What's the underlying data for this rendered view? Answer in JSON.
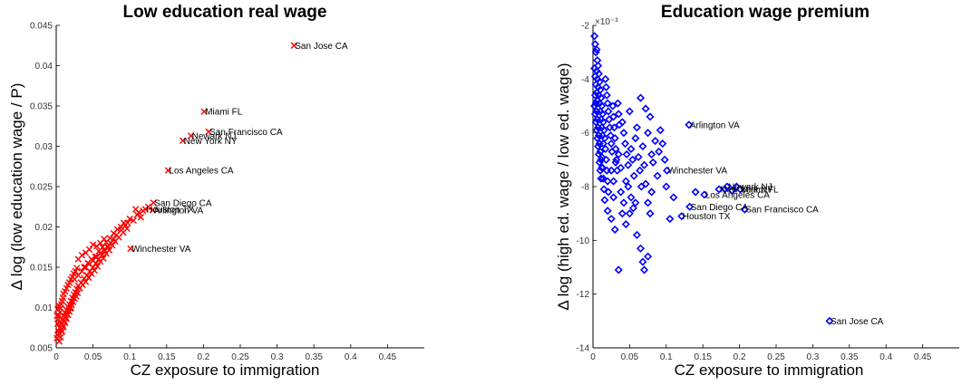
{
  "chart_data": [
    {
      "type": "scatter",
      "title": "Low education real wage",
      "xlabel": "CZ exposure to immigration",
      "ylabel": "Δ log (low education wage / P)",
      "xlim": [
        0,
        0.5
      ],
      "ylim": [
        0.005,
        0.045
      ],
      "xticks": [
        "0",
        "0.05",
        "0.1",
        "0.15",
        "0.2",
        "0.25",
        "0.3",
        "0.35",
        "0.4",
        "0.45"
      ],
      "yticks": [
        "0.005",
        "0.01",
        "0.015",
        "0.02",
        "0.025",
        "0.03",
        "0.035",
        "0.04",
        "0.045"
      ],
      "grid": false,
      "marker": "x",
      "color": "#ff0000",
      "labeled_points": [
        {
          "name": "San Jose CA",
          "x": 0.323,
          "y": 0.0425
        },
        {
          "name": "Miami FL",
          "x": 0.201,
          "y": 0.0343
        },
        {
          "name": "San Francisco CA",
          "x": 0.207,
          "y": 0.0318
        },
        {
          "name": "Newark NJ",
          "x": 0.183,
          "y": 0.0313
        },
        {
          "name": "New York NY",
          "x": 0.172,
          "y": 0.0307
        },
        {
          "name": "Los Angeles CA",
          "x": 0.152,
          "y": 0.027
        },
        {
          "name": "San Diego CA",
          "x": 0.132,
          "y": 0.023
        },
        {
          "name": "Houston TX",
          "x": 0.121,
          "y": 0.0222
        },
        {
          "name": "Arlington VA",
          "x": 0.131,
          "y": 0.0221
        },
        {
          "name": "Winchester VA",
          "x": 0.101,
          "y": 0.0173
        }
      ],
      "points": [
        [
          0.001,
          0.0062
        ],
        [
          0.002,
          0.0066
        ],
        [
          0.003,
          0.0071
        ],
        [
          0.004,
          0.0068
        ],
        [
          0.005,
          0.0075
        ],
        [
          0.006,
          0.008
        ],
        [
          0.007,
          0.0072
        ],
        [
          0.008,
          0.0085
        ],
        [
          0.009,
          0.0078
        ],
        [
          0.01,
          0.009
        ],
        [
          0.011,
          0.0083
        ],
        [
          0.012,
          0.0094
        ],
        [
          0.013,
          0.0088
        ],
        [
          0.014,
          0.0097
        ],
        [
          0.015,
          0.0092
        ],
        [
          0.016,
          0.0101
        ],
        [
          0.017,
          0.0096
        ],
        [
          0.018,
          0.0104
        ],
        [
          0.019,
          0.0099
        ],
        [
          0.02,
          0.0108
        ],
        [
          0.021,
          0.0103
        ],
        [
          0.022,
          0.0112
        ],
        [
          0.023,
          0.0107
        ],
        [
          0.024,
          0.0116
        ],
        [
          0.025,
          0.0111
        ],
        [
          0.026,
          0.0119
        ],
        [
          0.027,
          0.0114
        ],
        [
          0.028,
          0.0123
        ],
        [
          0.029,
          0.0118
        ],
        [
          0.03,
          0.0127
        ],
        [
          0.032,
          0.0124
        ],
        [
          0.034,
          0.0131
        ],
        [
          0.036,
          0.0128
        ],
        [
          0.038,
          0.0136
        ],
        [
          0.04,
          0.0132
        ],
        [
          0.042,
          0.014
        ],
        [
          0.044,
          0.0137
        ],
        [
          0.046,
          0.0145
        ],
        [
          0.048,
          0.0142
        ],
        [
          0.05,
          0.015
        ],
        [
          0.052,
          0.0146
        ],
        [
          0.054,
          0.0155
        ],
        [
          0.056,
          0.0151
        ],
        [
          0.058,
          0.016
        ],
        [
          0.06,
          0.0157
        ],
        [
          0.062,
          0.0165
        ],
        [
          0.064,
          0.0161
        ],
        [
          0.066,
          0.017
        ],
        [
          0.068,
          0.0167
        ],
        [
          0.07,
          0.0175
        ],
        [
          0.072,
          0.0171
        ],
        [
          0.074,
          0.018
        ],
        [
          0.076,
          0.0177
        ],
        [
          0.078,
          0.0185
        ],
        [
          0.08,
          0.0182
        ],
        [
          0.082,
          0.019
        ],
        [
          0.085,
          0.0187
        ],
        [
          0.088,
          0.0196
        ],
        [
          0.091,
          0.0193
        ],
        [
          0.094,
          0.0202
        ],
        [
          0.097,
          0.0205
        ],
        [
          0.1,
          0.021
        ],
        [
          0.03,
          0.016
        ],
        [
          0.035,
          0.0165
        ],
        [
          0.04,
          0.0168
        ],
        [
          0.045,
          0.0172
        ],
        [
          0.05,
          0.0178
        ],
        [
          0.055,
          0.0176
        ],
        [
          0.06,
          0.018
        ],
        [
          0.065,
          0.0185
        ],
        [
          0.038,
          0.015
        ],
        [
          0.043,
          0.0155
        ],
        [
          0.048,
          0.016
        ],
        [
          0.053,
          0.0163
        ],
        [
          0.058,
          0.017
        ],
        [
          0.063,
          0.0175
        ],
        [
          0.068,
          0.0181
        ],
        [
          0.073,
          0.0186
        ],
        [
          0.078,
          0.0192
        ],
        [
          0.083,
          0.0197
        ],
        [
          0.025,
          0.0135
        ],
        [
          0.03,
          0.014
        ],
        [
          0.035,
          0.0145
        ],
        [
          0.04,
          0.015
        ],
        [
          0.045,
          0.0154
        ],
        [
          0.05,
          0.0158
        ],
        [
          0.055,
          0.0163
        ],
        [
          0.06,
          0.0167
        ],
        [
          0.065,
          0.0172
        ],
        [
          0.07,
          0.0176
        ],
        [
          0.002,
          0.008
        ],
        [
          0.003,
          0.0085
        ],
        [
          0.004,
          0.009
        ],
        [
          0.005,
          0.0094
        ],
        [
          0.006,
          0.0099
        ],
        [
          0.007,
          0.0104
        ],
        [
          0.008,
          0.0108
        ],
        [
          0.009,
          0.0112
        ],
        [
          0.01,
          0.0117
        ],
        [
          0.012,
          0.012
        ],
        [
          0.014,
          0.0124
        ],
        [
          0.016,
          0.0128
        ],
        [
          0.018,
          0.0131
        ],
        [
          0.02,
          0.0135
        ],
        [
          0.022,
          0.0138
        ],
        [
          0.024,
          0.0142
        ],
        [
          0.026,
          0.0145
        ],
        [
          0.028,
          0.0149
        ],
        [
          0.001,
          0.009
        ],
        [
          0.002,
          0.0098
        ],
        [
          0.003,
          0.0103
        ],
        [
          0.004,
          0.0058
        ],
        [
          0.006,
          0.0063
        ],
        [
          0.008,
          0.007
        ],
        [
          0.01,
          0.0076
        ],
        [
          0.012,
          0.0081
        ],
        [
          0.014,
          0.0086
        ],
        [
          0.016,
          0.0091
        ],
        [
          0.018,
          0.0095
        ],
        [
          0.02,
          0.01
        ],
        [
          0.088,
          0.02
        ],
        [
          0.092,
          0.0205
        ],
        [
          0.096,
          0.0198
        ],
        [
          0.105,
          0.0208
        ],
        [
          0.11,
          0.0215
        ],
        [
          0.115,
          0.0212
        ],
        [
          0.118,
          0.022
        ],
        [
          0.108,
          0.0222
        ],
        [
          0.112,
          0.0218
        ],
        [
          0.125,
          0.0225
        ]
      ]
    },
    {
      "type": "scatter",
      "title": "Education wage premium",
      "xlabel": "CZ exposure to immigration",
      "ylabel": "Δ log (high ed. wage / low ed. wage)",
      "axis_multiplier": "×10⁻³",
      "xlim": [
        0,
        0.5
      ],
      "ylim": [
        -14,
        -2
      ],
      "xticks": [
        "0",
        "0.05",
        "0.1",
        "0.15",
        "0.2",
        "0.25",
        "0.3",
        "0.35",
        "0.4",
        "0.45"
      ],
      "yticks": [
        "-2",
        "-4",
        "-6",
        "-8",
        "-10",
        "-12",
        "-14"
      ],
      "grid": false,
      "marker": "diamond",
      "color": "#0000ff",
      "labeled_points": [
        {
          "name": "Arlington VA",
          "x": 0.131,
          "y": -5.7
        },
        {
          "name": "Winchester VA",
          "x": 0.101,
          "y": -7.4
        },
        {
          "name": "New York NY",
          "x": 0.172,
          "y": -8.1
        },
        {
          "name": "Newark NJ",
          "x": 0.183,
          "y": -8.0
        },
        {
          "name": "Miami FL",
          "x": 0.201,
          "y": -8.1
        },
        {
          "name": "Los Angeles CA",
          "x": 0.152,
          "y": -8.3
        },
        {
          "name": "San Diego CA",
          "x": 0.132,
          "y": -8.75
        },
        {
          "name": "San Francisco CA",
          "x": 0.207,
          "y": -8.85
        },
        {
          "name": "Houston TX",
          "x": 0.121,
          "y": -9.1
        },
        {
          "name": "San Jose CA",
          "x": 0.323,
          "y": -13.0
        }
      ],
      "points": [
        [
          0.002,
          -2.4
        ],
        [
          0.003,
          -2.7
        ],
        [
          0.004,
          -3.0
        ],
        [
          0.005,
          -2.9
        ],
        [
          0.006,
          -3.3
        ],
        [
          0.002,
          -3.6
        ],
        [
          0.003,
          -3.9
        ],
        [
          0.004,
          -4.2
        ],
        [
          0.005,
          -4.5
        ],
        [
          0.006,
          -4.8
        ],
        [
          0.007,
          -3.5
        ],
        [
          0.008,
          -3.8
        ],
        [
          0.009,
          -4.1
        ],
        [
          0.01,
          -4.4
        ],
        [
          0.011,
          -4.7
        ],
        [
          0.012,
          -5.0
        ],
        [
          0.013,
          -5.3
        ],
        [
          0.014,
          -5.6
        ],
        [
          0.015,
          -5.9
        ],
        [
          0.016,
          -6.2
        ],
        [
          0.002,
          -5.0
        ],
        [
          0.003,
          -5.3
        ],
        [
          0.004,
          -5.6
        ],
        [
          0.005,
          -5.9
        ],
        [
          0.006,
          -6.2
        ],
        [
          0.007,
          -6.5
        ],
        [
          0.008,
          -6.8
        ],
        [
          0.009,
          -7.1
        ],
        [
          0.01,
          -7.4
        ],
        [
          0.011,
          -7.7
        ],
        [
          0.017,
          -4.0
        ],
        [
          0.018,
          -4.3
        ],
        [
          0.019,
          -4.6
        ],
        [
          0.02,
          -4.9
        ],
        [
          0.021,
          -5.2
        ],
        [
          0.022,
          -5.5
        ],
        [
          0.023,
          -5.8
        ],
        [
          0.024,
          -6.1
        ],
        [
          0.025,
          -6.4
        ],
        [
          0.026,
          -6.7
        ],
        [
          0.027,
          -5.0
        ],
        [
          0.028,
          -5.4
        ],
        [
          0.029,
          -5.8
        ],
        [
          0.03,
          -6.2
        ],
        [
          0.031,
          -6.6
        ],
        [
          0.032,
          -7.0
        ],
        [
          0.033,
          -7.4
        ],
        [
          0.034,
          -4.9
        ],
        [
          0.035,
          -5.3
        ],
        [
          0.036,
          -5.7
        ],
        [
          0.012,
          -6.9
        ],
        [
          0.013,
          -7.3
        ],
        [
          0.014,
          -7.7
        ],
        [
          0.015,
          -8.1
        ],
        [
          0.016,
          -8.5
        ],
        [
          0.017,
          -6.6
        ],
        [
          0.018,
          -7.0
        ],
        [
          0.019,
          -7.4
        ],
        [
          0.02,
          -7.8
        ],
        [
          0.021,
          -8.2
        ],
        [
          0.04,
          -5.6
        ],
        [
          0.042,
          -6.0
        ],
        [
          0.044,
          -6.4
        ],
        [
          0.046,
          -6.8
        ],
        [
          0.048,
          -7.2
        ],
        [
          0.05,
          -5.2
        ],
        [
          0.052,
          -6.6
        ],
        [
          0.054,
          -7.0
        ],
        [
          0.056,
          -7.6
        ],
        [
          0.058,
          -6.2
        ],
        [
          0.06,
          -5.8
        ],
        [
          0.062,
          -6.9
        ],
        [
          0.064,
          -7.4
        ],
        [
          0.066,
          -8.0
        ],
        [
          0.068,
          -6.5
        ],
        [
          0.07,
          -7.2
        ],
        [
          0.072,
          -7.9
        ],
        [
          0.075,
          -6.0
        ],
        [
          0.078,
          -5.4
        ],
        [
          0.08,
          -6.8
        ],
        [
          0.082,
          -7.1
        ],
        [
          0.085,
          -6.3
        ],
        [
          0.088,
          -7.6
        ],
        [
          0.09,
          -6.7
        ],
        [
          0.092,
          -5.9
        ],
        [
          0.095,
          -6.4
        ],
        [
          0.098,
          -7.0
        ],
        [
          0.1,
          -8.0
        ],
        [
          0.105,
          -9.2
        ],
        [
          0.11,
          -8.4
        ],
        [
          0.065,
          -4.7
        ],
        [
          0.072,
          -5.1
        ],
        [
          0.075,
          -8.6
        ],
        [
          0.078,
          -9.0
        ],
        [
          0.08,
          -8.2
        ],
        [
          0.06,
          -9.8
        ],
        [
          0.065,
          -10.3
        ],
        [
          0.068,
          -10.8
        ],
        [
          0.07,
          -11.1
        ],
        [
          0.075,
          -10.6
        ],
        [
          0.04,
          -9.0
        ],
        [
          0.045,
          -9.4
        ],
        [
          0.035,
          -11.1
        ],
        [
          0.05,
          -9.0
        ],
        [
          0.055,
          -8.8
        ],
        [
          0.03,
          -9.6
        ],
        [
          0.025,
          -9.2
        ],
        [
          0.02,
          -8.9
        ],
        [
          0.028,
          -8.4
        ],
        [
          0.038,
          -8.2
        ],
        [
          0.045,
          -7.8
        ],
        [
          0.042,
          -8.6
        ],
        [
          0.048,
          -8.0
        ],
        [
          0.052,
          -8.4
        ],
        [
          0.058,
          -8.6
        ],
        [
          0.025,
          -7.4
        ],
        [
          0.028,
          -7.8
        ],
        [
          0.031,
          -7.1
        ],
        [
          0.035,
          -6.8
        ],
        [
          0.038,
          -7.3
        ],
        [
          0.005,
          -3.7
        ],
        [
          0.006,
          -4.0
        ],
        [
          0.007,
          -4.3
        ],
        [
          0.008,
          -4.6
        ],
        [
          0.009,
          -4.9
        ],
        [
          0.01,
          -5.2
        ],
        [
          0.011,
          -5.5
        ],
        [
          0.012,
          -5.8
        ],
        [
          0.013,
          -6.1
        ],
        [
          0.014,
          -6.4
        ],
        [
          0.003,
          -4.6
        ],
        [
          0.004,
          -4.9
        ],
        [
          0.005,
          -5.2
        ],
        [
          0.006,
          -5.5
        ],
        [
          0.007,
          -5.8
        ],
        [
          0.008,
          -6.1
        ],
        [
          0.009,
          -6.4
        ],
        [
          0.01,
          -6.7
        ],
        [
          0.011,
          -7.0
        ],
        [
          0.012,
          -7.3
        ],
        [
          0.18,
          -8.1
        ],
        [
          0.196,
          -8.0
        ],
        [
          0.19,
          -8.15
        ],
        [
          0.14,
          -8.2
        ]
      ]
    }
  ]
}
